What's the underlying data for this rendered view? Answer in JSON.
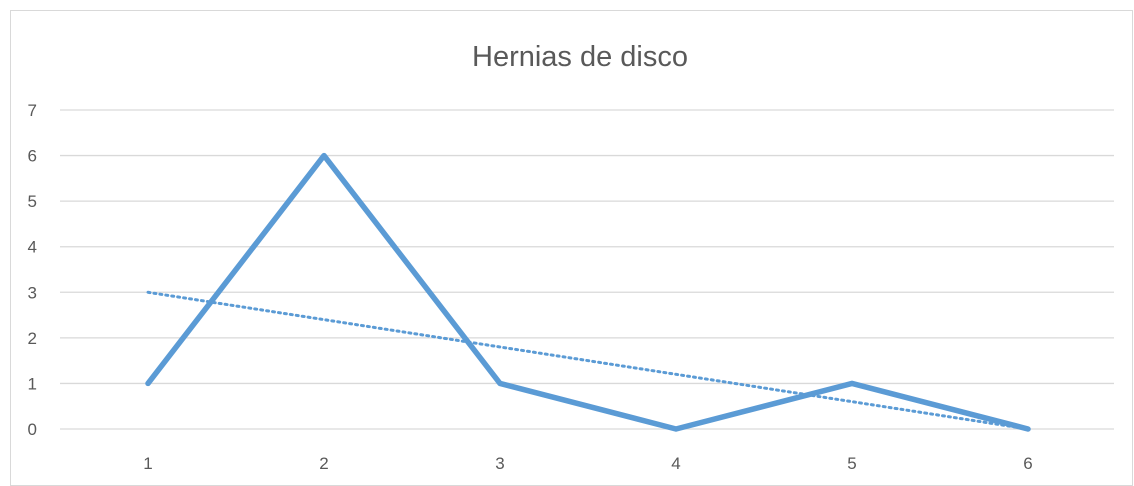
{
  "chart_data": {
    "type": "line",
    "title": "Hernias de disco",
    "xlabel": "",
    "ylabel": "",
    "categories": [
      "1",
      "2",
      "3",
      "4",
      "5",
      "6"
    ],
    "series": [
      {
        "values": [
          1,
          6,
          1,
          0,
          1,
          0
        ],
        "color": "#5b9bd5"
      }
    ],
    "trendline": {
      "kind": "linear",
      "style": "dotted",
      "color": "#5b9bd5",
      "start": 3.0,
      "end": 0.0
    },
    "ylim": [
      0,
      7
    ],
    "yticks": [
      "0",
      "1",
      "2",
      "3",
      "4",
      "5",
      "6",
      "7"
    ],
    "grid": true,
    "legend": "none"
  }
}
